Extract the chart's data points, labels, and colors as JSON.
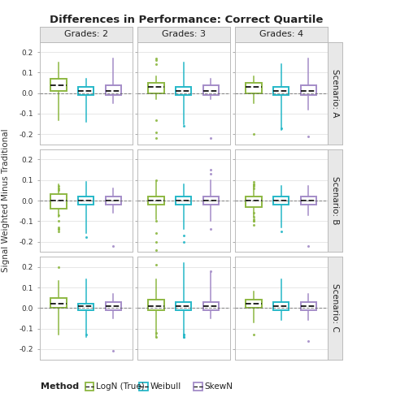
{
  "title": "Differences in Performance: Correct Quartile",
  "ylabel": "Signal Weighted Minus Traditional",
  "col_labels": [
    "Grades: 2",
    "Grades: 3",
    "Grades: 4"
  ],
  "row_labels": [
    "Scenario: A",
    "Scenario: B",
    "Scenario: C"
  ],
  "methods": [
    "LogN (True)",
    "Weibull",
    "SkewN"
  ],
  "method_colors": [
    "#8db842",
    "#26b8c8",
    "#a48cc8"
  ],
  "ylim": [
    -0.25,
    0.25
  ],
  "yticks": [
    -0.2,
    -0.1,
    0.0,
    0.1,
    0.2
  ],
  "strip_bg": "#e8e8e8",
  "panel_bg": "#ffffff",
  "boxes": {
    "A_2_LogN": {
      "q1": 0.01,
      "med": 0.04,
      "q3": 0.07,
      "whislo": -0.13,
      "whishi": 0.15,
      "fliers": []
    },
    "A_2_Weibull": {
      "q1": -0.01,
      "med": 0.01,
      "q3": 0.03,
      "whislo": -0.14,
      "whishi": 0.07,
      "fliers": []
    },
    "A_2_SkewN": {
      "q1": -0.01,
      "med": 0.01,
      "q3": 0.04,
      "whislo": -0.05,
      "whishi": 0.17,
      "fliers": []
    },
    "A_3_LogN": {
      "q1": 0.0,
      "med": 0.03,
      "q3": 0.05,
      "whislo": -0.03,
      "whishi": 0.08,
      "fliers": [
        0.17,
        0.16,
        0.14,
        -0.13,
        -0.19,
        -0.22
      ]
    },
    "A_3_Weibull": {
      "q1": -0.01,
      "med": 0.01,
      "q3": 0.03,
      "whislo": -0.15,
      "whishi": 0.15,
      "fliers": [
        -0.16
      ]
    },
    "A_3_SkewN": {
      "q1": -0.01,
      "med": 0.01,
      "q3": 0.04,
      "whislo": -0.03,
      "whishi": 0.07,
      "fliers": [
        -0.22
      ]
    },
    "A_4_LogN": {
      "q1": 0.0,
      "med": 0.03,
      "q3": 0.05,
      "whislo": -0.05,
      "whishi": 0.08,
      "fliers": [
        -0.2
      ]
    },
    "A_4_Weibull": {
      "q1": -0.01,
      "med": 0.01,
      "q3": 0.03,
      "whislo": -0.18,
      "whishi": 0.14,
      "fliers": [
        -0.17
      ]
    },
    "A_4_SkewN": {
      "q1": -0.01,
      "med": 0.01,
      "q3": 0.04,
      "whislo": -0.08,
      "whishi": 0.17,
      "fliers": [
        -0.21
      ]
    },
    "B_2_LogN": {
      "q1": -0.04,
      "med": 0.0,
      "q3": 0.03,
      "whislo": -0.08,
      "whishi": 0.08,
      "fliers": [
        0.07,
        0.06,
        0.05,
        -0.07,
        -0.1,
        -0.13,
        -0.14,
        -0.14,
        -0.15
      ]
    },
    "B_2_Weibull": {
      "q1": -0.02,
      "med": 0.0,
      "q3": 0.02,
      "whislo": -0.16,
      "whishi": 0.09,
      "fliers": [
        -0.18
      ]
    },
    "B_2_SkewN": {
      "q1": -0.02,
      "med": 0.0,
      "q3": 0.02,
      "whislo": -0.06,
      "whishi": 0.06,
      "fliers": [
        -0.22
      ]
    },
    "B_3_LogN": {
      "q1": -0.02,
      "med": 0.0,
      "q3": 0.02,
      "whislo": -0.09,
      "whishi": 0.09,
      "fliers": [
        0.1,
        -0.1,
        -0.16,
        -0.2,
        -0.24
      ]
    },
    "B_3_Weibull": {
      "q1": -0.02,
      "med": 0.0,
      "q3": 0.02,
      "whislo": -0.14,
      "whishi": 0.08,
      "fliers": [
        -0.17,
        -0.2
      ]
    },
    "B_3_SkewN": {
      "q1": -0.02,
      "med": 0.0,
      "q3": 0.02,
      "whislo": -0.1,
      "whishi": 0.1,
      "fliers": [
        0.13,
        0.15,
        -0.14
      ]
    },
    "B_4_LogN": {
      "q1": -0.03,
      "med": 0.0,
      "q3": 0.02,
      "whislo": -0.08,
      "whishi": 0.07,
      "fliers": [
        0.06,
        0.07,
        0.08,
        0.08,
        0.09,
        -0.06,
        -0.08,
        -0.09,
        -0.1,
        -0.1,
        -0.12
      ]
    },
    "B_4_Weibull": {
      "q1": -0.02,
      "med": 0.0,
      "q3": 0.02,
      "whislo": -0.13,
      "whishi": 0.07,
      "fliers": [
        -0.15
      ]
    },
    "B_4_SkewN": {
      "q1": -0.02,
      "med": 0.0,
      "q3": 0.02,
      "whislo": -0.07,
      "whishi": 0.07,
      "fliers": [
        -0.22
      ]
    },
    "C_2_LogN": {
      "q1": 0.0,
      "med": 0.02,
      "q3": 0.05,
      "whislo": -0.13,
      "whishi": 0.13,
      "fliers": [
        0.2
      ]
    },
    "C_2_Weibull": {
      "q1": -0.01,
      "med": 0.01,
      "q3": 0.02,
      "whislo": -0.14,
      "whishi": 0.14,
      "fliers": [
        -0.13
      ]
    },
    "C_2_SkewN": {
      "q1": -0.01,
      "med": 0.01,
      "q3": 0.03,
      "whislo": -0.05,
      "whishi": 0.07,
      "fliers": [
        -0.21
      ]
    },
    "C_3_LogN": {
      "q1": -0.01,
      "med": 0.01,
      "q3": 0.04,
      "whislo": -0.14,
      "whishi": 0.14,
      "fliers": [
        0.21,
        -0.12,
        -0.14
      ]
    },
    "C_3_Weibull": {
      "q1": -0.01,
      "med": 0.01,
      "q3": 0.03,
      "whislo": -0.14,
      "whishi": 0.22,
      "fliers": [
        -0.13,
        -0.13,
        -0.14,
        -0.14
      ]
    },
    "C_3_SkewN": {
      "q1": -0.01,
      "med": 0.01,
      "q3": 0.03,
      "whislo": -0.05,
      "whishi": 0.17,
      "fliers": [
        0.18
      ]
    },
    "C_4_LogN": {
      "q1": 0.0,
      "med": 0.02,
      "q3": 0.04,
      "whislo": -0.07,
      "whishi": 0.08,
      "fliers": [
        -0.13
      ]
    },
    "C_4_Weibull": {
      "q1": -0.01,
      "med": 0.01,
      "q3": 0.03,
      "whislo": -0.06,
      "whishi": 0.14,
      "fliers": []
    },
    "C_4_SkewN": {
      "q1": -0.01,
      "med": 0.01,
      "q3": 0.03,
      "whislo": -0.06,
      "whishi": 0.07,
      "fliers": [
        -0.16
      ]
    }
  }
}
